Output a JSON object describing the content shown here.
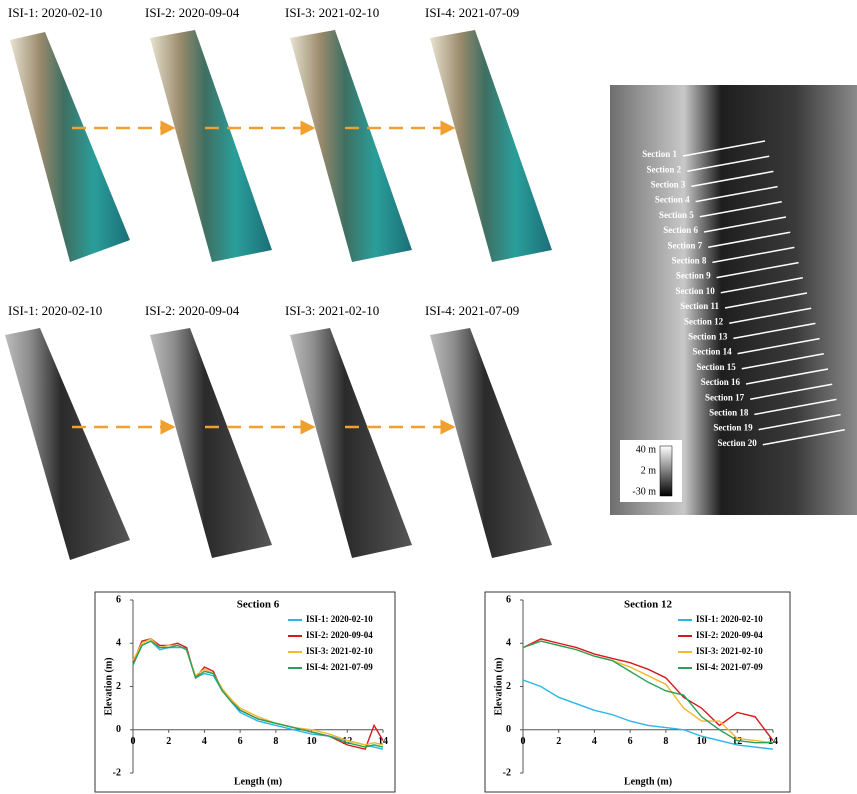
{
  "rows": [
    {
      "labels": [
        "ISI-1: 2020-02-10",
        "ISI-2: 2020-09-04",
        "ISI-3: 2021-02-10",
        "ISI-4: 2021-07-09"
      ]
    },
    {
      "labels": [
        "ISI-1: 2020-02-10",
        "ISI-2: 2020-09-04",
        "ISI-3: 2021-02-10",
        "ISI-4: 2021-07-09"
      ]
    }
  ],
  "dem": {
    "sections": [
      "Section 1",
      "Section 2",
      "Section 3",
      "Section 4",
      "Section 5",
      "Section 6",
      "Section 7",
      "Section 8",
      "Section 9",
      "Section 10",
      "Section 11",
      "Section 12",
      "Section 13",
      "Section 14",
      "Section 15",
      "Section 16",
      "Section 17",
      "Section 18",
      "Section 19",
      "Section 20"
    ],
    "colorbar": [
      "40 m",
      "2 m",
      "-30 m"
    ]
  },
  "chart_data": [
    {
      "type": "line",
      "title": "Section 6",
      "x_label": "Length (m)",
      "y_label": "Elevation (m)",
      "xlim": [
        0,
        14
      ],
      "ylim": [
        -2,
        6
      ],
      "xticks": [
        0,
        2,
        4,
        6,
        8,
        10,
        12,
        14
      ],
      "yticks": [
        -2,
        0,
        2,
        4,
        6
      ],
      "x": [
        0,
        0.5,
        1,
        1.5,
        2,
        2.5,
        3,
        3.5,
        4,
        4.5,
        5,
        5.5,
        6,
        7,
        8,
        9,
        10,
        11,
        12,
        13,
        13.5,
        14
      ],
      "series": [
        {
          "name": "ISI-1: 2020-02-10",
          "color": "#2bb5e6",
          "values": [
            3,
            3.9,
            4.1,
            3.7,
            3.8,
            3.8,
            3.8,
            2.4,
            2.6,
            2.5,
            1.8,
            1.3,
            0.8,
            0.4,
            0.2,
            0,
            -0.2,
            -0.3,
            -0.5,
            -0.7,
            -0.8,
            -0.9
          ]
        },
        {
          "name": "ISI-2: 2020-09-04",
          "color": "#d7191c",
          "values": [
            3.1,
            4.1,
            4.2,
            3.9,
            3.9,
            4,
            3.8,
            2.4,
            2.9,
            2.7,
            1.8,
            1.4,
            0.9,
            0.5,
            0.3,
            0.1,
            -0.1,
            -0.3,
            -0.7,
            -0.9,
            0.2,
            -0.5
          ]
        },
        {
          "name": "ISI-3: 2021-02-10",
          "color": "#f5b82e",
          "values": [
            3.2,
            4,
            4.2,
            3.8,
            3.9,
            3.9,
            3.7,
            2.5,
            2.8,
            2.6,
            1.9,
            1.4,
            1,
            0.6,
            0.3,
            0.1,
            0,
            -0.2,
            -0.5,
            -0.7,
            -0.6,
            -0.7
          ]
        },
        {
          "name": "ISI-4: 2021-07-09",
          "color": "#2ca05a",
          "values": [
            3,
            3.9,
            4.1,
            3.8,
            3.8,
            3.9,
            3.7,
            2.4,
            2.7,
            2.6,
            1.8,
            1.3,
            0.9,
            0.5,
            0.3,
            0.1,
            -0.1,
            -0.3,
            -0.6,
            -0.8,
            -0.7,
            -0.8
          ]
        }
      ],
      "legend": "upper right"
    },
    {
      "type": "line",
      "title": "Section 12",
      "x_label": "Length (m)",
      "y_label": "Elevation (m)",
      "xlim": [
        0,
        14
      ],
      "ylim": [
        -2,
        6
      ],
      "xticks": [
        0,
        2,
        4,
        6,
        8,
        10,
        12,
        14
      ],
      "yticks": [
        -2,
        0,
        2,
        4,
        6
      ],
      "x": [
        0,
        1,
        2,
        3,
        4,
        5,
        6,
        7,
        8,
        9,
        10,
        11,
        12,
        13,
        14
      ],
      "series": [
        {
          "name": "ISI-1: 2020-02-10",
          "color": "#2bb5e6",
          "values": [
            2.3,
            2,
            1.5,
            1.2,
            0.9,
            0.7,
            0.4,
            0.2,
            0.1,
            0,
            -0.3,
            -0.5,
            -0.7,
            -0.8,
            -0.9
          ]
        },
        {
          "name": "ISI-2: 2020-09-04",
          "color": "#d7191c",
          "values": [
            3.8,
            4.2,
            4,
            3.8,
            3.5,
            3.3,
            3.1,
            2.8,
            2.4,
            1.5,
            1,
            0.2,
            0.8,
            0.6,
            -0.5
          ]
        },
        {
          "name": "ISI-3: 2021-02-10",
          "color": "#f5b82e",
          "values": [
            3.8,
            4.1,
            3.9,
            3.7,
            3.4,
            3.2,
            2.9,
            2.5,
            2.1,
            1,
            0.4,
            0.4,
            -0.4,
            -0.5,
            -0.6
          ]
        },
        {
          "name": "ISI-4: 2021-07-09",
          "color": "#2ca05a",
          "values": [
            3.8,
            4.1,
            3.9,
            3.7,
            3.4,
            3.2,
            2.7,
            2.2,
            1.8,
            1.6,
            0.6,
            0,
            -0.5,
            -0.6,
            -0.6
          ]
        }
      ],
      "legend": "upper right"
    }
  ]
}
